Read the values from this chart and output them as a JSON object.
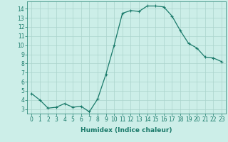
{
  "x": [
    0,
    1,
    2,
    3,
    4,
    5,
    6,
    7,
    8,
    9,
    10,
    11,
    12,
    13,
    14,
    15,
    16,
    17,
    18,
    19,
    20,
    21,
    22,
    23
  ],
  "y": [
    4.7,
    4.0,
    3.1,
    3.2,
    3.6,
    3.2,
    3.3,
    2.7,
    4.1,
    6.8,
    10.0,
    13.5,
    13.8,
    13.7,
    14.3,
    14.3,
    14.2,
    13.2,
    11.6,
    10.2,
    9.7,
    8.7,
    8.6,
    8.2
  ],
  "line_color": "#1a7a6a",
  "marker": "+",
  "marker_size": 3,
  "marker_linewidth": 0.8,
  "bg_color": "#cceee8",
  "grid_color": "#aad4cc",
  "xlabel": "Humidex (Indice chaleur)",
  "ylim": [
    2.5,
    14.8
  ],
  "xlim": [
    -0.5,
    23.5
  ],
  "yticks": [
    3,
    4,
    5,
    6,
    7,
    8,
    9,
    10,
    11,
    12,
    13,
    14
  ],
  "xticks": [
    0,
    1,
    2,
    3,
    4,
    5,
    6,
    7,
    8,
    9,
    10,
    11,
    12,
    13,
    14,
    15,
    16,
    17,
    18,
    19,
    20,
    21,
    22,
    23
  ],
  "tick_fontsize": 5.5,
  "xlabel_fontsize": 6.5,
  "axis_color": "#1a7a6a",
  "linewidth": 0.9
}
